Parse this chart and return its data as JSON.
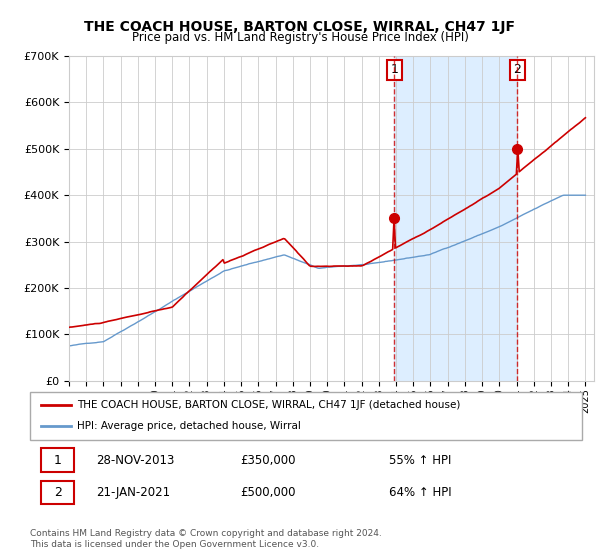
{
  "title": "THE COACH HOUSE, BARTON CLOSE, WIRRAL, CH47 1JF",
  "subtitle": "Price paid vs. HM Land Registry's House Price Index (HPI)",
  "footer": "Contains HM Land Registry data © Crown copyright and database right 2024.\nThis data is licensed under the Open Government Licence v3.0.",
  "legend_line1": "THE COACH HOUSE, BARTON CLOSE, WIRRAL, CH47 1JF (detached house)",
  "legend_line2": "HPI: Average price, detached house, Wirral",
  "sale1_date": "28-NOV-2013",
  "sale1_price": 350000,
  "sale1_pct": "55%",
  "sale2_date": "21-JAN-2021",
  "sale2_price": 500000,
  "sale2_pct": "64%",
  "red_color": "#cc0000",
  "blue_color": "#6699cc",
  "shade_color": "#ddeeff",
  "ylim_min": 0,
  "ylim_max": 700000,
  "ytick_step": 100000,
  "x_start_year": 1995,
  "x_end_year": 2025,
  "sale1_x": 2013.9,
  "sale2_x": 2021.05
}
